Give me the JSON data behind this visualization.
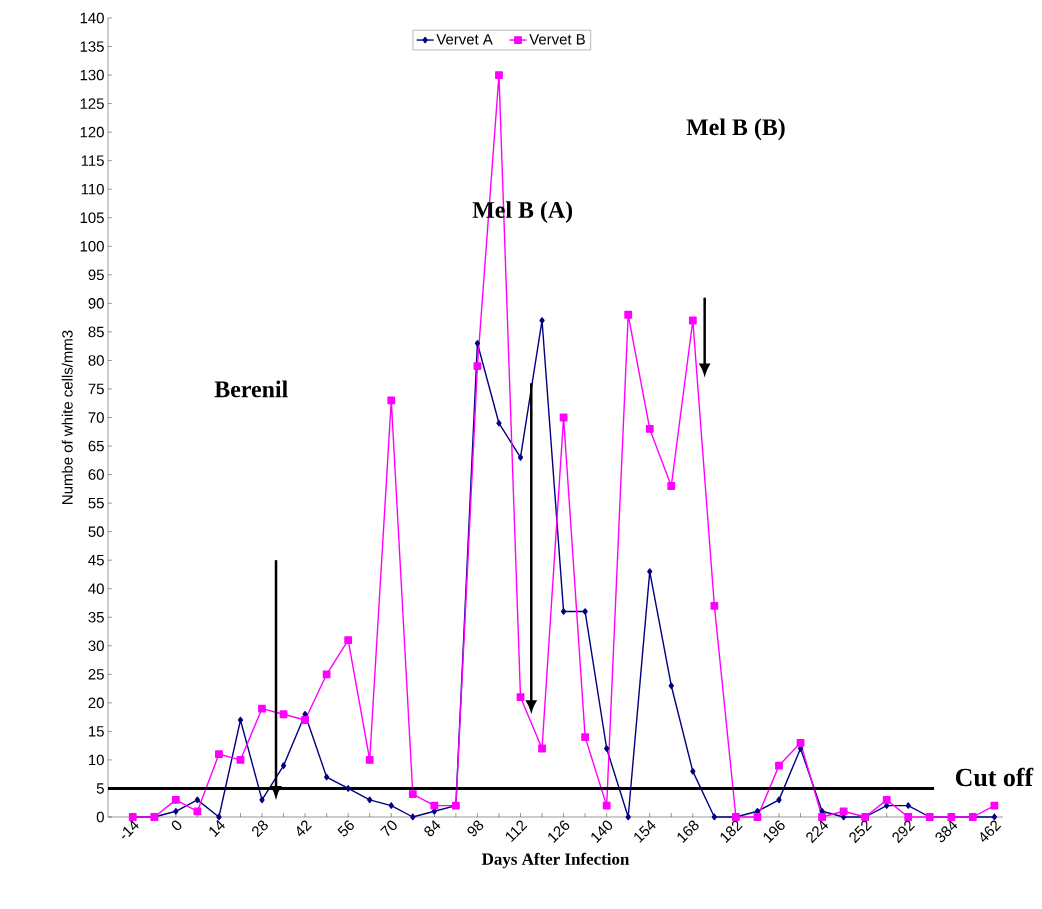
{
  "chart_data": {
    "type": "line",
    "xlabel": "Days After Infection",
    "ylabel": "Numbe of white cells/mm3",
    "categories": [
      "-14",
      null,
      "0",
      null,
      "14",
      null,
      "28",
      null,
      "42",
      null,
      "56",
      null,
      "70",
      null,
      "84",
      null,
      "98",
      null,
      "112",
      null,
      "126",
      null,
      "140",
      null,
      "154",
      null,
      "168",
      null,
      "182",
      null,
      "196",
      null,
      "224",
      null,
      "252",
      null,
      "292",
      null,
      "384",
      null,
      "462"
    ],
    "series": [
      {
        "name": "Vervet A",
        "color": "#000080",
        "marker": "diamond",
        "values": [
          0,
          0,
          1,
          3,
          0,
          17,
          3,
          9,
          18,
          7,
          5,
          3,
          2,
          0,
          1,
          2,
          83,
          69,
          63,
          87,
          36,
          36,
          12,
          0,
          43,
          23,
          8,
          0,
          0,
          1,
          3,
          12,
          1,
          0,
          0,
          2,
          2,
          0,
          0,
          0,
          0
        ]
      },
      {
        "name": "Vervet B",
        "color": "#ff00ff",
        "marker": "square",
        "values": [
          0,
          0,
          3,
          1,
          11,
          10,
          19,
          18,
          17,
          25,
          31,
          10,
          73,
          4,
          2,
          2,
          79,
          130,
          21,
          12,
          70,
          14,
          2,
          88,
          68,
          58,
          87,
          37,
          0,
          0,
          9,
          13,
          0,
          1,
          0,
          3,
          0,
          0,
          0,
          0,
          2
        ]
      }
    ],
    "ylim": [
      0,
      140
    ],
    "yticks": [
      0,
      5,
      10,
      15,
      20,
      25,
      30,
      35,
      40,
      45,
      50,
      55,
      60,
      65,
      70,
      75,
      80,
      85,
      90,
      95,
      100,
      105,
      110,
      115,
      120,
      125,
      130,
      135,
      140
    ],
    "ref_lines": [
      {
        "axis": "y",
        "value": 5,
        "label": "Cut off",
        "color": "#000000"
      }
    ],
    "annotations": [
      "Berenil",
      "Mel B (A)",
      "Mel B (B)"
    ],
    "legend": "top",
    "grid": false,
    "line_style": "solid"
  }
}
